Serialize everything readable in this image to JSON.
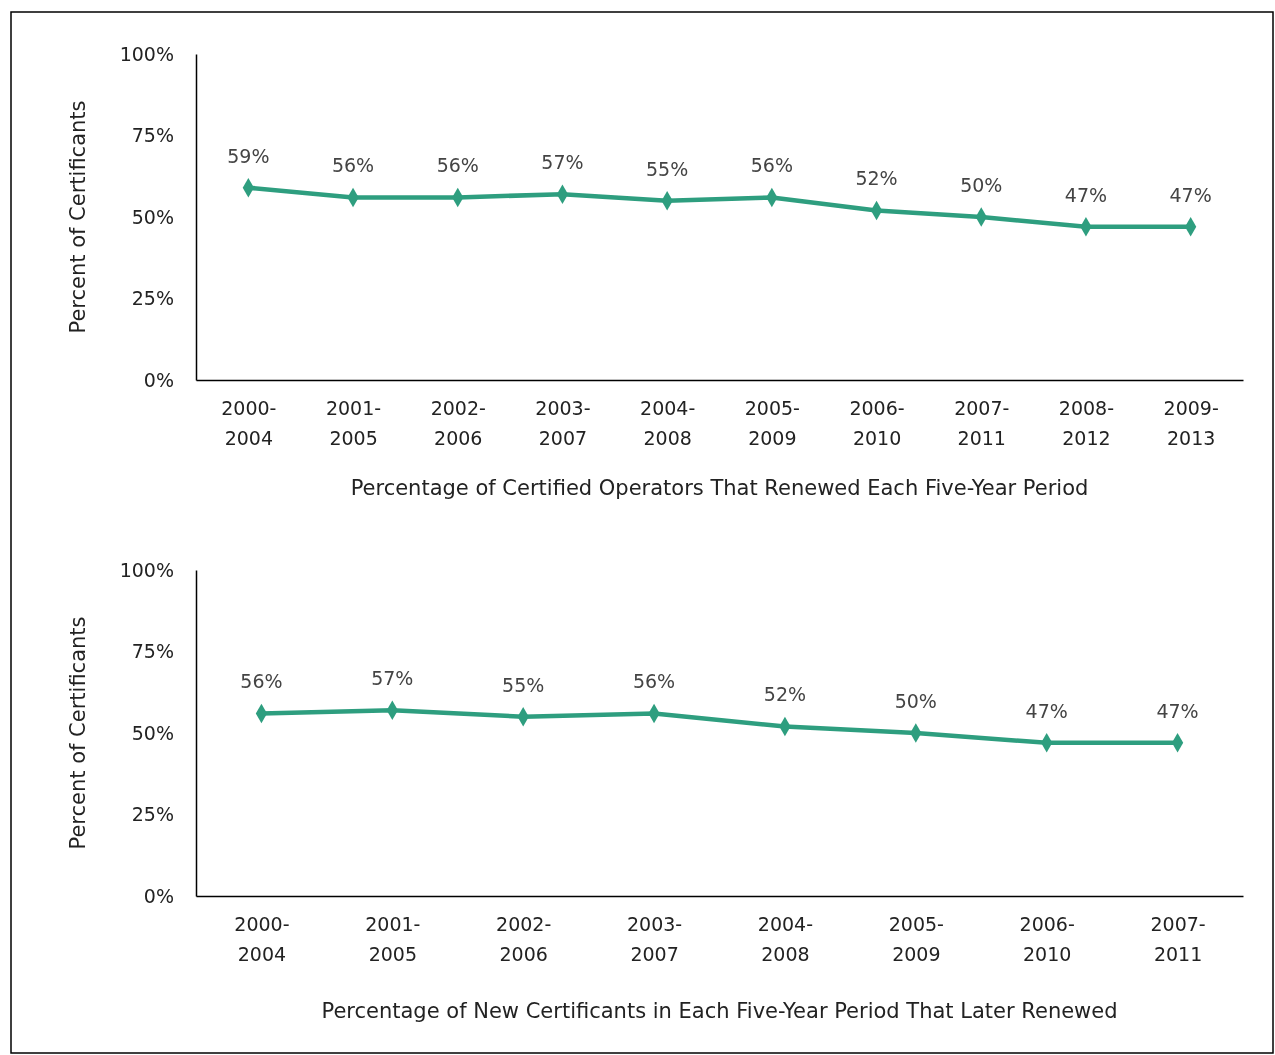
{
  "chart_data": [
    {
      "type": "line",
      "xlabel": "Percentage of Certified Operators That Renewed Each Five-Year Period",
      "ylabel": "Percent of Certificants",
      "categories": [
        "2000-2004",
        "2001-2005",
        "2002-2006",
        "2003-2007",
        "2004-2008",
        "2005-2009",
        "2006-2010",
        "2007-2011",
        "2008-2012",
        "2009-2013"
      ],
      "series": [
        {
          "color": "#2e9e7f",
          "values": [
            59,
            56,
            56,
            57,
            55,
            56,
            52,
            50,
            47,
            47
          ]
        }
      ],
      "ylim": [
        0,
        100
      ],
      "yticks": [
        {
          "value": 0,
          "label": "0%"
        },
        {
          "value": 25,
          "label": "25%"
        },
        {
          "value": 50,
          "label": "50%"
        },
        {
          "value": 75,
          "label": "75%"
        },
        {
          "value": 100,
          "label": "100%"
        }
      ],
      "value_labels": [
        "59%",
        "56%",
        "56%",
        "57%",
        "55%",
        "56%",
        "52%",
        "50%",
        "47%",
        "47%"
      ],
      "marker": "diamond",
      "grid": false
    },
    {
      "type": "line",
      "xlabel": "Percentage of New Certificants in Each Five-Year Period That Later Renewed",
      "ylabel": "Percent of Certificants",
      "categories": [
        "2000-2004",
        "2001-2005",
        "2002-2006",
        "2003-2007",
        "2004-2008",
        "2005-2009",
        "2006-2010",
        "2007-2011"
      ],
      "series": [
        {
          "color": "#2e9e7f",
          "values": [
            56,
            57,
            55,
            56,
            52,
            50,
            47,
            47
          ]
        }
      ],
      "ylim": [
        0,
        100
      ],
      "yticks": [
        {
          "value": 0,
          "label": "0%"
        },
        {
          "value": 25,
          "label": "25%"
        },
        {
          "value": 50,
          "label": "50%"
        },
        {
          "value": 75,
          "label": "75%"
        },
        {
          "value": 100,
          "label": "100%"
        }
      ],
      "value_labels": [
        "56%",
        "57%",
        "55%",
        "56%",
        "52%",
        "50%",
        "47%",
        "47%"
      ],
      "marker": "diamond",
      "grid": false
    }
  ]
}
